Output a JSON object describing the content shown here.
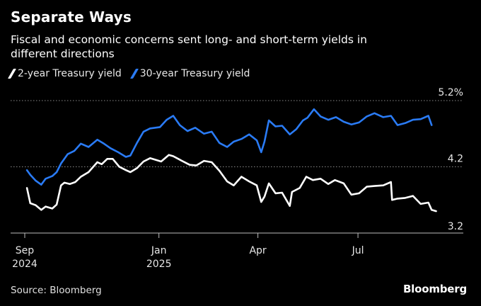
{
  "header": {
    "title": "Separate Ways",
    "subtitle": "Fiscal and economic concerns sent long- and short-term yields in different directions"
  },
  "footer": {
    "source": "Source: Bloomberg",
    "brand": "Bloomberg"
  },
  "chart_data": {
    "type": "line",
    "title": "Separate Ways",
    "subtitle": "Fiscal and economic concerns sent long- and short-term yields in different directions",
    "xlabel": "",
    "ylabel": "",
    "ylim": [
      3.2,
      5.2
    ],
    "y_ticks": [
      {
        "value": 5.2,
        "label": "5.2%"
      },
      {
        "value": 4.2,
        "label": "4.2"
      },
      {
        "value": 3.2,
        "label": "3.2"
      }
    ],
    "x_ticks": [
      {
        "date": "2024-09-01",
        "line1": "Sep",
        "line2": "2024"
      },
      {
        "date": "2025-01-01",
        "line1": "Jan",
        "line2": "2025"
      },
      {
        "date": "2025-04-01",
        "line1": "Apr",
        "line2": ""
      },
      {
        "date": "2025-07-01",
        "line1": "Jul",
        "line2": ""
      }
    ],
    "x_range": [
      "2024-09-01",
      "2025-09-20"
    ],
    "grid": "dotted horizontal",
    "legend": "top-left",
    "series": [
      {
        "name": "2-year Treasury yield",
        "color": "#ffffff",
        "points": [
          [
            "2024-09-03",
            3.88
          ],
          [
            "2024-09-06",
            3.65
          ],
          [
            "2024-09-11",
            3.62
          ],
          [
            "2024-09-16",
            3.55
          ],
          [
            "2024-09-20",
            3.6
          ],
          [
            "2024-09-26",
            3.57
          ],
          [
            "2024-09-30",
            3.63
          ],
          [
            "2024-10-04",
            3.92
          ],
          [
            "2024-10-07",
            3.96
          ],
          [
            "2024-10-12",
            3.94
          ],
          [
            "2024-10-17",
            3.97
          ],
          [
            "2024-10-22",
            4.05
          ],
          [
            "2024-10-29",
            4.12
          ],
          [
            "2024-11-06",
            4.27
          ],
          [
            "2024-11-10",
            4.24
          ],
          [
            "2024-11-15",
            4.32
          ],
          [
            "2024-11-20",
            4.32
          ],
          [
            "2024-11-26",
            4.2
          ],
          [
            "2024-12-02",
            4.15
          ],
          [
            "2024-12-06",
            4.12
          ],
          [
            "2024-12-12",
            4.18
          ],
          [
            "2024-12-18",
            4.28
          ],
          [
            "2024-12-24",
            4.33
          ],
          [
            "2025-01-03",
            4.28
          ],
          [
            "2025-01-10",
            4.38
          ],
          [
            "2025-01-14",
            4.36
          ],
          [
            "2025-01-22",
            4.29
          ],
          [
            "2025-01-29",
            4.23
          ],
          [
            "2025-02-04",
            4.22
          ],
          [
            "2025-02-11",
            4.29
          ],
          [
            "2025-02-18",
            4.27
          ],
          [
            "2025-02-25",
            4.14
          ],
          [
            "2025-03-04",
            3.98
          ],
          [
            "2025-03-10",
            3.92
          ],
          [
            "2025-03-17",
            4.05
          ],
          [
            "2025-03-24",
            3.98
          ],
          [
            "2025-03-31",
            3.92
          ],
          [
            "2025-04-04",
            3.67
          ],
          [
            "2025-04-07",
            3.75
          ],
          [
            "2025-04-11",
            3.95
          ],
          [
            "2025-04-17",
            3.8
          ],
          [
            "2025-04-23",
            3.81
          ],
          [
            "2025-04-30",
            3.61
          ],
          [
            "2025-05-02",
            3.82
          ],
          [
            "2025-05-09",
            3.88
          ],
          [
            "2025-05-15",
            4.05
          ],
          [
            "2025-05-21",
            4.0
          ],
          [
            "2025-05-28",
            4.02
          ],
          [
            "2025-06-04",
            3.94
          ],
          [
            "2025-06-10",
            4.0
          ],
          [
            "2025-06-18",
            3.95
          ],
          [
            "2025-06-25",
            3.78
          ],
          [
            "2025-07-02",
            3.8
          ],
          [
            "2025-07-09",
            3.9
          ],
          [
            "2025-07-16",
            3.91
          ],
          [
            "2025-07-24",
            3.92
          ],
          [
            "2025-07-31",
            3.97
          ],
          [
            "2025-08-01",
            3.7
          ],
          [
            "2025-08-06",
            3.72
          ],
          [
            "2025-08-13",
            3.73
          ],
          [
            "2025-08-20",
            3.76
          ],
          [
            "2025-08-27",
            3.64
          ],
          [
            "2025-09-03",
            3.66
          ],
          [
            "2025-09-06",
            3.55
          ],
          [
            "2025-09-10",
            3.53
          ]
        ]
      },
      {
        "name": "30-year Treasury yield",
        "color": "#2a7bf5",
        "points": [
          [
            "2024-09-03",
            4.15
          ],
          [
            "2024-09-06",
            4.08
          ],
          [
            "2024-09-11",
            3.99
          ],
          [
            "2024-09-16",
            3.93
          ],
          [
            "2024-09-20",
            4.02
          ],
          [
            "2024-09-26",
            4.06
          ],
          [
            "2024-09-30",
            4.12
          ],
          [
            "2024-10-04",
            4.25
          ],
          [
            "2024-10-10",
            4.39
          ],
          [
            "2024-10-16",
            4.44
          ],
          [
            "2024-10-22",
            4.55
          ],
          [
            "2024-10-29",
            4.5
          ],
          [
            "2024-11-06",
            4.61
          ],
          [
            "2024-11-12",
            4.55
          ],
          [
            "2024-11-18",
            4.48
          ],
          [
            "2024-11-25",
            4.42
          ],
          [
            "2024-12-02",
            4.35
          ],
          [
            "2024-12-06",
            4.37
          ],
          [
            "2024-12-12",
            4.56
          ],
          [
            "2024-12-18",
            4.73
          ],
          [
            "2024-12-24",
            4.78
          ],
          [
            "2025-01-02",
            4.8
          ],
          [
            "2025-01-08",
            4.91
          ],
          [
            "2025-01-14",
            4.97
          ],
          [
            "2025-01-20",
            4.83
          ],
          [
            "2025-01-27",
            4.74
          ],
          [
            "2025-02-03",
            4.79
          ],
          [
            "2025-02-11",
            4.7
          ],
          [
            "2025-02-18",
            4.73
          ],
          [
            "2025-02-25",
            4.56
          ],
          [
            "2025-03-04",
            4.5
          ],
          [
            "2025-03-10",
            4.58
          ],
          [
            "2025-03-17",
            4.62
          ],
          [
            "2025-03-24",
            4.69
          ],
          [
            "2025-03-31",
            4.6
          ],
          [
            "2025-04-04",
            4.42
          ],
          [
            "2025-04-07",
            4.58
          ],
          [
            "2025-04-11",
            4.9
          ],
          [
            "2025-04-17",
            4.81
          ],
          [
            "2025-04-23",
            4.82
          ],
          [
            "2025-04-30",
            4.69
          ],
          [
            "2025-05-06",
            4.77
          ],
          [
            "2025-05-12",
            4.9
          ],
          [
            "2025-05-16",
            4.94
          ],
          [
            "2025-05-22",
            5.07
          ],
          [
            "2025-05-28",
            4.96
          ],
          [
            "2025-06-04",
            4.91
          ],
          [
            "2025-06-11",
            4.95
          ],
          [
            "2025-06-18",
            4.88
          ],
          [
            "2025-06-25",
            4.84
          ],
          [
            "2025-07-02",
            4.87
          ],
          [
            "2025-07-09",
            4.96
          ],
          [
            "2025-07-16",
            5.01
          ],
          [
            "2025-07-24",
            4.95
          ],
          [
            "2025-07-31",
            4.97
          ],
          [
            "2025-08-06",
            4.83
          ],
          [
            "2025-08-13",
            4.86
          ],
          [
            "2025-08-20",
            4.91
          ],
          [
            "2025-08-27",
            4.92
          ],
          [
            "2025-09-03",
            4.97
          ],
          [
            "2025-09-06",
            4.83
          ]
        ]
      }
    ]
  }
}
